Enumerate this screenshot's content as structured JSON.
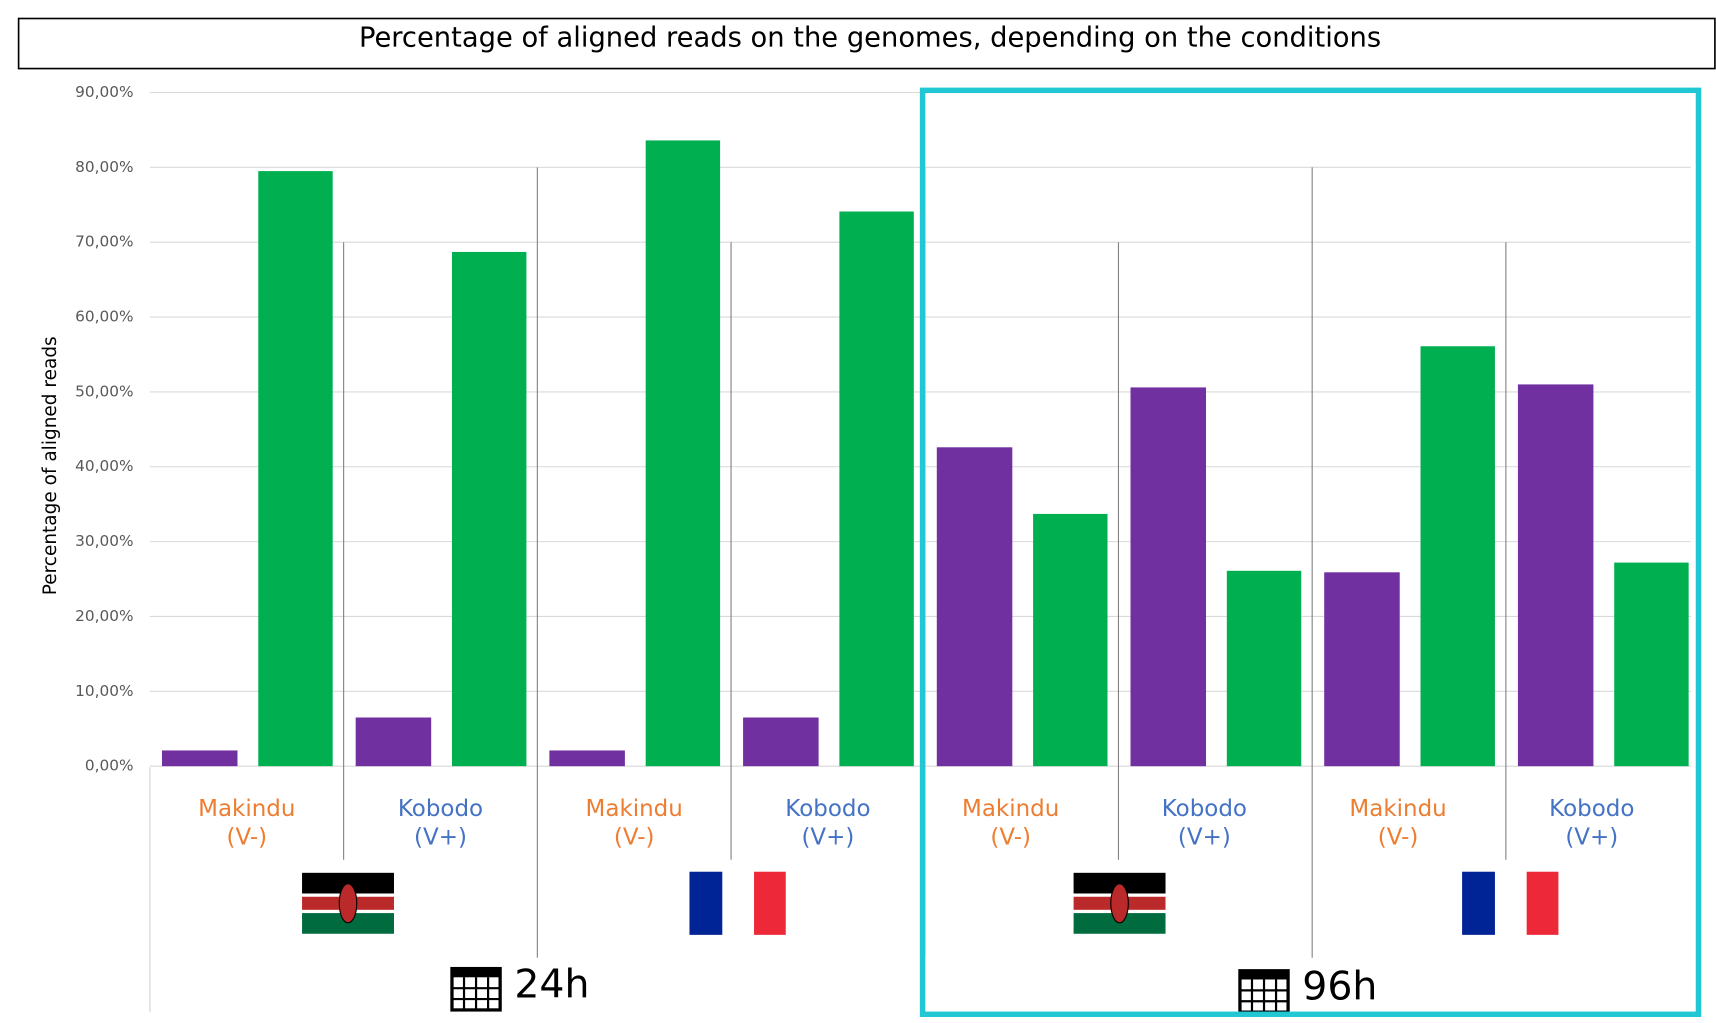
{
  "chart_data": {
    "type": "bar",
    "title": "Percentage of aligned reads on the genomes, depending on the conditions",
    "y_label": "Percentage of aligned reads",
    "categories": [
      "Makindu",
      "Kobodo",
      "Makindu",
      "Kobodo",
      "Makindu",
      "Kobodo",
      "Makindu",
      "Kobodo"
    ],
    "subcategories": [
      "(V-)",
      "(V+)",
      "(V-)",
      "(V+)",
      "(V-)",
      "(V+)",
      "(V-)",
      "(V+)"
    ],
    "category_colors": [
      "#ed7d31",
      "#4472c4",
      "#ed7d31",
      "#4472c4",
      "#ed7d31",
      "#4472c4",
      "#ed7d31",
      "#4472c4"
    ],
    "time_labels": [
      "24h",
      "96h"
    ],
    "series": [
      {
        "color": "#7030a0",
        "values": [
          2.1,
          6.5,
          2.1,
          6.5,
          42.6,
          50.6,
          25.9,
          51.0
        ]
      },
      {
        "color": "#00b050",
        "values": [
          79.5,
          68.7,
          83.6,
          74.1,
          33.7,
          26.1,
          56.1,
          27.2
        ]
      }
    ],
    "ylim": [
      0,
      90
    ],
    "yticks": [
      {
        "value": 0,
        "label": "0,00%"
      },
      {
        "value": 10,
        "label": "10,00%"
      },
      {
        "value": 20,
        "label": "20,00%"
      },
      {
        "value": 30,
        "label": "30,00%"
      },
      {
        "value": 40,
        "label": "40,00%"
      },
      {
        "value": 50,
        "label": "50,00%"
      },
      {
        "value": 60,
        "label": "60,00%"
      },
      {
        "value": 70,
        "label": "70,00%"
      },
      {
        "value": 80,
        "label": "80,00%"
      },
      {
        "value": 90,
        "label": "90,00%"
      }
    ],
    "grid": true
  }
}
